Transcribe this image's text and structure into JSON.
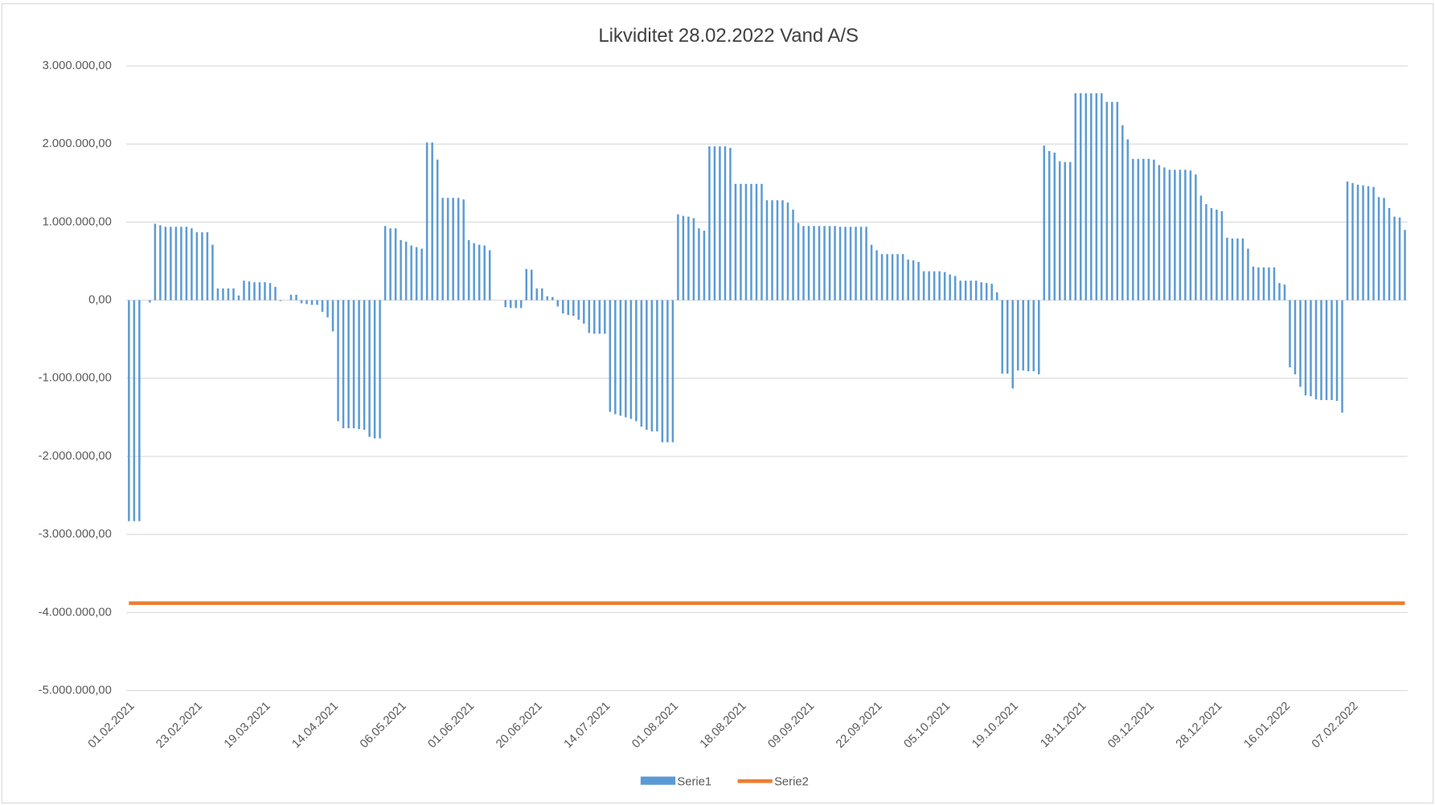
{
  "chart_data": {
    "type": "bar",
    "title": "Likviditet 28.02.2022 Vand A/S",
    "categories": [
      "01.02.2021",
      null,
      null,
      null,
      null,
      null,
      null,
      null,
      null,
      null,
      null,
      null,
      null,
      "23.02.2021",
      null,
      null,
      null,
      null,
      null,
      null,
      null,
      null,
      null,
      null,
      null,
      null,
      "19.03.2021",
      null,
      null,
      null,
      null,
      null,
      null,
      null,
      null,
      null,
      null,
      null,
      null,
      "14.04.2021",
      null,
      null,
      null,
      null,
      null,
      null,
      null,
      null,
      null,
      null,
      null,
      null,
      "06.05.2021",
      null,
      null,
      null,
      null,
      null,
      null,
      null,
      null,
      null,
      null,
      null,
      null,
      "01.06.2021",
      null,
      null,
      null,
      null,
      null,
      null,
      null,
      null,
      null,
      null,
      null,
      null,
      "20.06.2021",
      null,
      null,
      null,
      null,
      null,
      null,
      null,
      null,
      null,
      null,
      null,
      null,
      "14.07.2021",
      null,
      null,
      null,
      null,
      null,
      null,
      null,
      null,
      null,
      null,
      null,
      null,
      "01.08.2021",
      null,
      null,
      null,
      null,
      null,
      null,
      null,
      null,
      null,
      null,
      null,
      null,
      "18.08.2021",
      null,
      null,
      null,
      null,
      null,
      null,
      null,
      null,
      null,
      null,
      null,
      null,
      "09.09.2021",
      null,
      null,
      null,
      null,
      null,
      null,
      null,
      null,
      null,
      null,
      null,
      null,
      "22.09.2021",
      null,
      null,
      null,
      null,
      null,
      null,
      null,
      null,
      null,
      null,
      null,
      null,
      "05.10.2021",
      null,
      null,
      null,
      null,
      null,
      null,
      null,
      null,
      null,
      null,
      null,
      null,
      "19.10.2021",
      null,
      null,
      null,
      null,
      null,
      null,
      null,
      null,
      null,
      null,
      null,
      null,
      "18.11.2021",
      null,
      null,
      null,
      null,
      null,
      null,
      null,
      null,
      null,
      null,
      null,
      null,
      "09.12.2021",
      null,
      null,
      null,
      null,
      null,
      null,
      null,
      null,
      null,
      null,
      null,
      null,
      "28.12.2021",
      null,
      null,
      null,
      null,
      null,
      null,
      null,
      null,
      null,
      null,
      null,
      null,
      "16.01.2022",
      null,
      null,
      null,
      null,
      null,
      null,
      null,
      null,
      null,
      null,
      null,
      null,
      "07.02.2022",
      null,
      null,
      null,
      null,
      null,
      null,
      null,
      null,
      null,
      null
    ],
    "series": [
      {
        "name": "Serie1",
        "type": "bar",
        "color": "#5b9bd5",
        "values": [
          -2830000,
          -2830000,
          -2830000,
          0,
          -30000,
          980000,
          960000,
          940000,
          940000,
          940000,
          940000,
          940000,
          920000,
          870000,
          870000,
          870000,
          710000,
          150000,
          150000,
          150000,
          150000,
          60000,
          250000,
          240000,
          230000,
          230000,
          230000,
          220000,
          170000,
          -10000,
          0,
          70000,
          70000,
          -40000,
          -50000,
          -60000,
          -60000,
          -150000,
          -220000,
          -400000,
          -1550000,
          -1640000,
          -1640000,
          -1640000,
          -1650000,
          -1660000,
          -1750000,
          -1770000,
          -1770000,
          950000,
          920000,
          920000,
          770000,
          750000,
          700000,
          680000,
          660000,
          2020000,
          2020000,
          1800000,
          1310000,
          1310000,
          1310000,
          1310000,
          1290000,
          770000,
          730000,
          710000,
          700000,
          640000,
          0,
          0,
          -90000,
          -100000,
          -100000,
          -100000,
          400000,
          390000,
          150000,
          150000,
          50000,
          40000,
          -80000,
          -170000,
          -190000,
          -200000,
          -250000,
          -300000,
          -420000,
          -430000,
          -430000,
          -430000,
          -1430000,
          -1460000,
          -1480000,
          -1500000,
          -1520000,
          -1550000,
          -1620000,
          -1660000,
          -1680000,
          -1680000,
          -1820000,
          -1820000,
          -1820000,
          1100000,
          1080000,
          1070000,
          1050000,
          920000,
          890000,
          1970000,
          1970000,
          1970000,
          1970000,
          1950000,
          1490000,
          1490000,
          1490000,
          1490000,
          1490000,
          1490000,
          1280000,
          1280000,
          1280000,
          1280000,
          1250000,
          1160000,
          990000,
          950000,
          950000,
          950000,
          950000,
          950000,
          950000,
          950000,
          940000,
          940000,
          940000,
          940000,
          940000,
          940000,
          710000,
          640000,
          590000,
          590000,
          590000,
          590000,
          590000,
          520000,
          510000,
          490000,
          370000,
          370000,
          370000,
          370000,
          360000,
          330000,
          310000,
          250000,
          250000,
          250000,
          250000,
          230000,
          220000,
          210000,
          100000,
          -940000,
          -940000,
          -1130000,
          -900000,
          -900000,
          -910000,
          -910000,
          -950000,
          1980000,
          1910000,
          1890000,
          1780000,
          1770000,
          1770000,
          2650000,
          2650000,
          2650000,
          2650000,
          2650000,
          2650000,
          2540000,
          2540000,
          2540000,
          2240000,
          2060000,
          1810000,
          1810000,
          1810000,
          1810000,
          1800000,
          1730000,
          1700000,
          1670000,
          1670000,
          1670000,
          1670000,
          1660000,
          1610000,
          1340000,
          1230000,
          1180000,
          1160000,
          1140000,
          800000,
          790000,
          790000,
          790000,
          660000,
          430000,
          420000,
          420000,
          420000,
          420000,
          220000,
          200000,
          -860000,
          -950000,
          -1110000,
          -1220000,
          -1230000,
          -1270000,
          -1280000,
          -1280000,
          -1280000,
          -1290000,
          -1440000,
          1520000,
          1500000,
          1480000,
          1470000,
          1460000,
          1450000,
          1320000,
          1310000,
          1180000,
          1070000,
          1060000,
          900000
        ]
      },
      {
        "name": "Serie2",
        "type": "line",
        "color": "#ed7d31",
        "values": [
          -3880000,
          -3880000,
          -3880000,
          -3880000,
          -3880000,
          -3880000,
          -3880000,
          -3880000,
          -3880000,
          -3880000,
          -3880000,
          -3880000,
          -3880000,
          -3880000,
          -3880000,
          -3880000,
          -3880000,
          -3880000,
          -3880000,
          -3880000,
          -3880000,
          -3880000,
          -3880000,
          -3880000,
          -3880000,
          -3880000,
          -3880000,
          -3880000,
          -3880000,
          -3880000,
          -3880000,
          -3880000,
          -3880000,
          -3880000,
          -3880000,
          -3880000,
          -3880000,
          -3880000,
          -3880000,
          -3880000,
          -3880000,
          -3880000,
          -3880000,
          -3880000,
          -3880000,
          -3880000,
          -3880000,
          -3880000,
          -3880000,
          -3880000,
          -3880000,
          -3880000,
          -3880000,
          -3880000,
          -3880000,
          -3880000,
          -3880000,
          -3880000,
          -3880000,
          -3880000,
          -3880000,
          -3880000,
          -3880000,
          -3880000,
          -3880000,
          -3880000,
          -3880000,
          -3880000,
          -3880000,
          -3880000,
          -3880000,
          -3880000,
          -3880000,
          -3880000,
          -3880000,
          -3880000,
          -3880000,
          -3880000,
          -3880000,
          -3880000,
          -3880000,
          -3880000,
          -3880000,
          -3880000,
          -3880000,
          -3880000,
          -3880000,
          -3880000,
          -3880000,
          -3880000,
          -3880000,
          -3880000,
          -3880000,
          -3880000,
          -3880000,
          -3880000,
          -3880000,
          -3880000,
          -3880000,
          -3880000,
          -3880000,
          -3880000,
          -3880000,
          -3880000,
          -3880000,
          -3880000,
          -3880000,
          -3880000,
          -3880000,
          -3880000,
          -3880000,
          -3880000,
          -3880000,
          -3880000,
          -3880000,
          -3880000,
          -3880000,
          -3880000,
          -3880000,
          -3880000,
          -3880000,
          -3880000,
          -3880000,
          -3880000,
          -3880000,
          -3880000,
          -3880000,
          -3880000,
          -3880000,
          -3880000,
          -3880000,
          -3880000,
          -3880000,
          -3880000,
          -3880000,
          -3880000,
          -3880000,
          -3880000,
          -3880000,
          -3880000,
          -3880000,
          -3880000,
          -3880000,
          -3880000,
          -3880000,
          -3880000,
          -3880000,
          -3880000,
          -3880000,
          -3880000,
          -3880000,
          -3880000,
          -3880000,
          -3880000,
          -3880000,
          -3880000,
          -3880000,
          -3880000,
          -3880000,
          -3880000,
          -3880000,
          -3880000,
          -3880000,
          -3880000,
          -3880000,
          -3880000,
          -3880000,
          -3880000,
          -3880000,
          -3880000,
          -3880000,
          -3880000,
          -3880000,
          -3880000,
          -3880000,
          -3880000,
          -3880000,
          -3880000,
          -3880000,
          -3880000,
          -3880000,
          -3880000,
          -3880000,
          -3880000,
          -3880000,
          -3880000,
          -3880000,
          -3880000,
          -3880000,
          -3880000,
          -3880000,
          -3880000,
          -3880000,
          -3880000,
          -3880000,
          -3880000,
          -3880000,
          -3880000,
          -3880000,
          -3880000,
          -3880000,
          -3880000,
          -3880000,
          -3880000,
          -3880000,
          -3880000,
          -3880000,
          -3880000,
          -3880000,
          -3880000,
          -3880000,
          -3880000,
          -3880000,
          -3880000,
          -3880000,
          -3880000,
          -3880000,
          -3880000,
          -3880000,
          -3880000,
          -3880000,
          -3880000,
          -3880000,
          -3880000,
          -3880000,
          -3880000,
          -3880000,
          -3880000,
          -3880000,
          -3880000,
          -3880000,
          -3880000,
          -3880000,
          -3880000,
          -3880000,
          -3880000,
          -3880000,
          -3880000,
          -3880000,
          -3880000,
          -3880000,
          -3880000,
          -3880000,
          -3880000,
          -3880000
        ]
      }
    ],
    "ylim": [
      -5000000,
      3000000
    ],
    "yticks": [
      {
        "value": -5000000,
        "label": "-5.000.000,00"
      },
      {
        "value": -4000000,
        "label": "-4.000.000,00"
      },
      {
        "value": -3000000,
        "label": "-3.000.000,00"
      },
      {
        "value": -2000000,
        "label": "-2.000.000,00"
      },
      {
        "value": -1000000,
        "label": "-1.000.000,00"
      },
      {
        "value": 0,
        "label": "0,00"
      },
      {
        "value": 1000000,
        "label": "1.000.000,00"
      },
      {
        "value": 2000000,
        "label": "2.000.000,00"
      },
      {
        "value": 3000000,
        "label": "3.000.000,00"
      }
    ],
    "grid": true,
    "legend": "bottom"
  }
}
